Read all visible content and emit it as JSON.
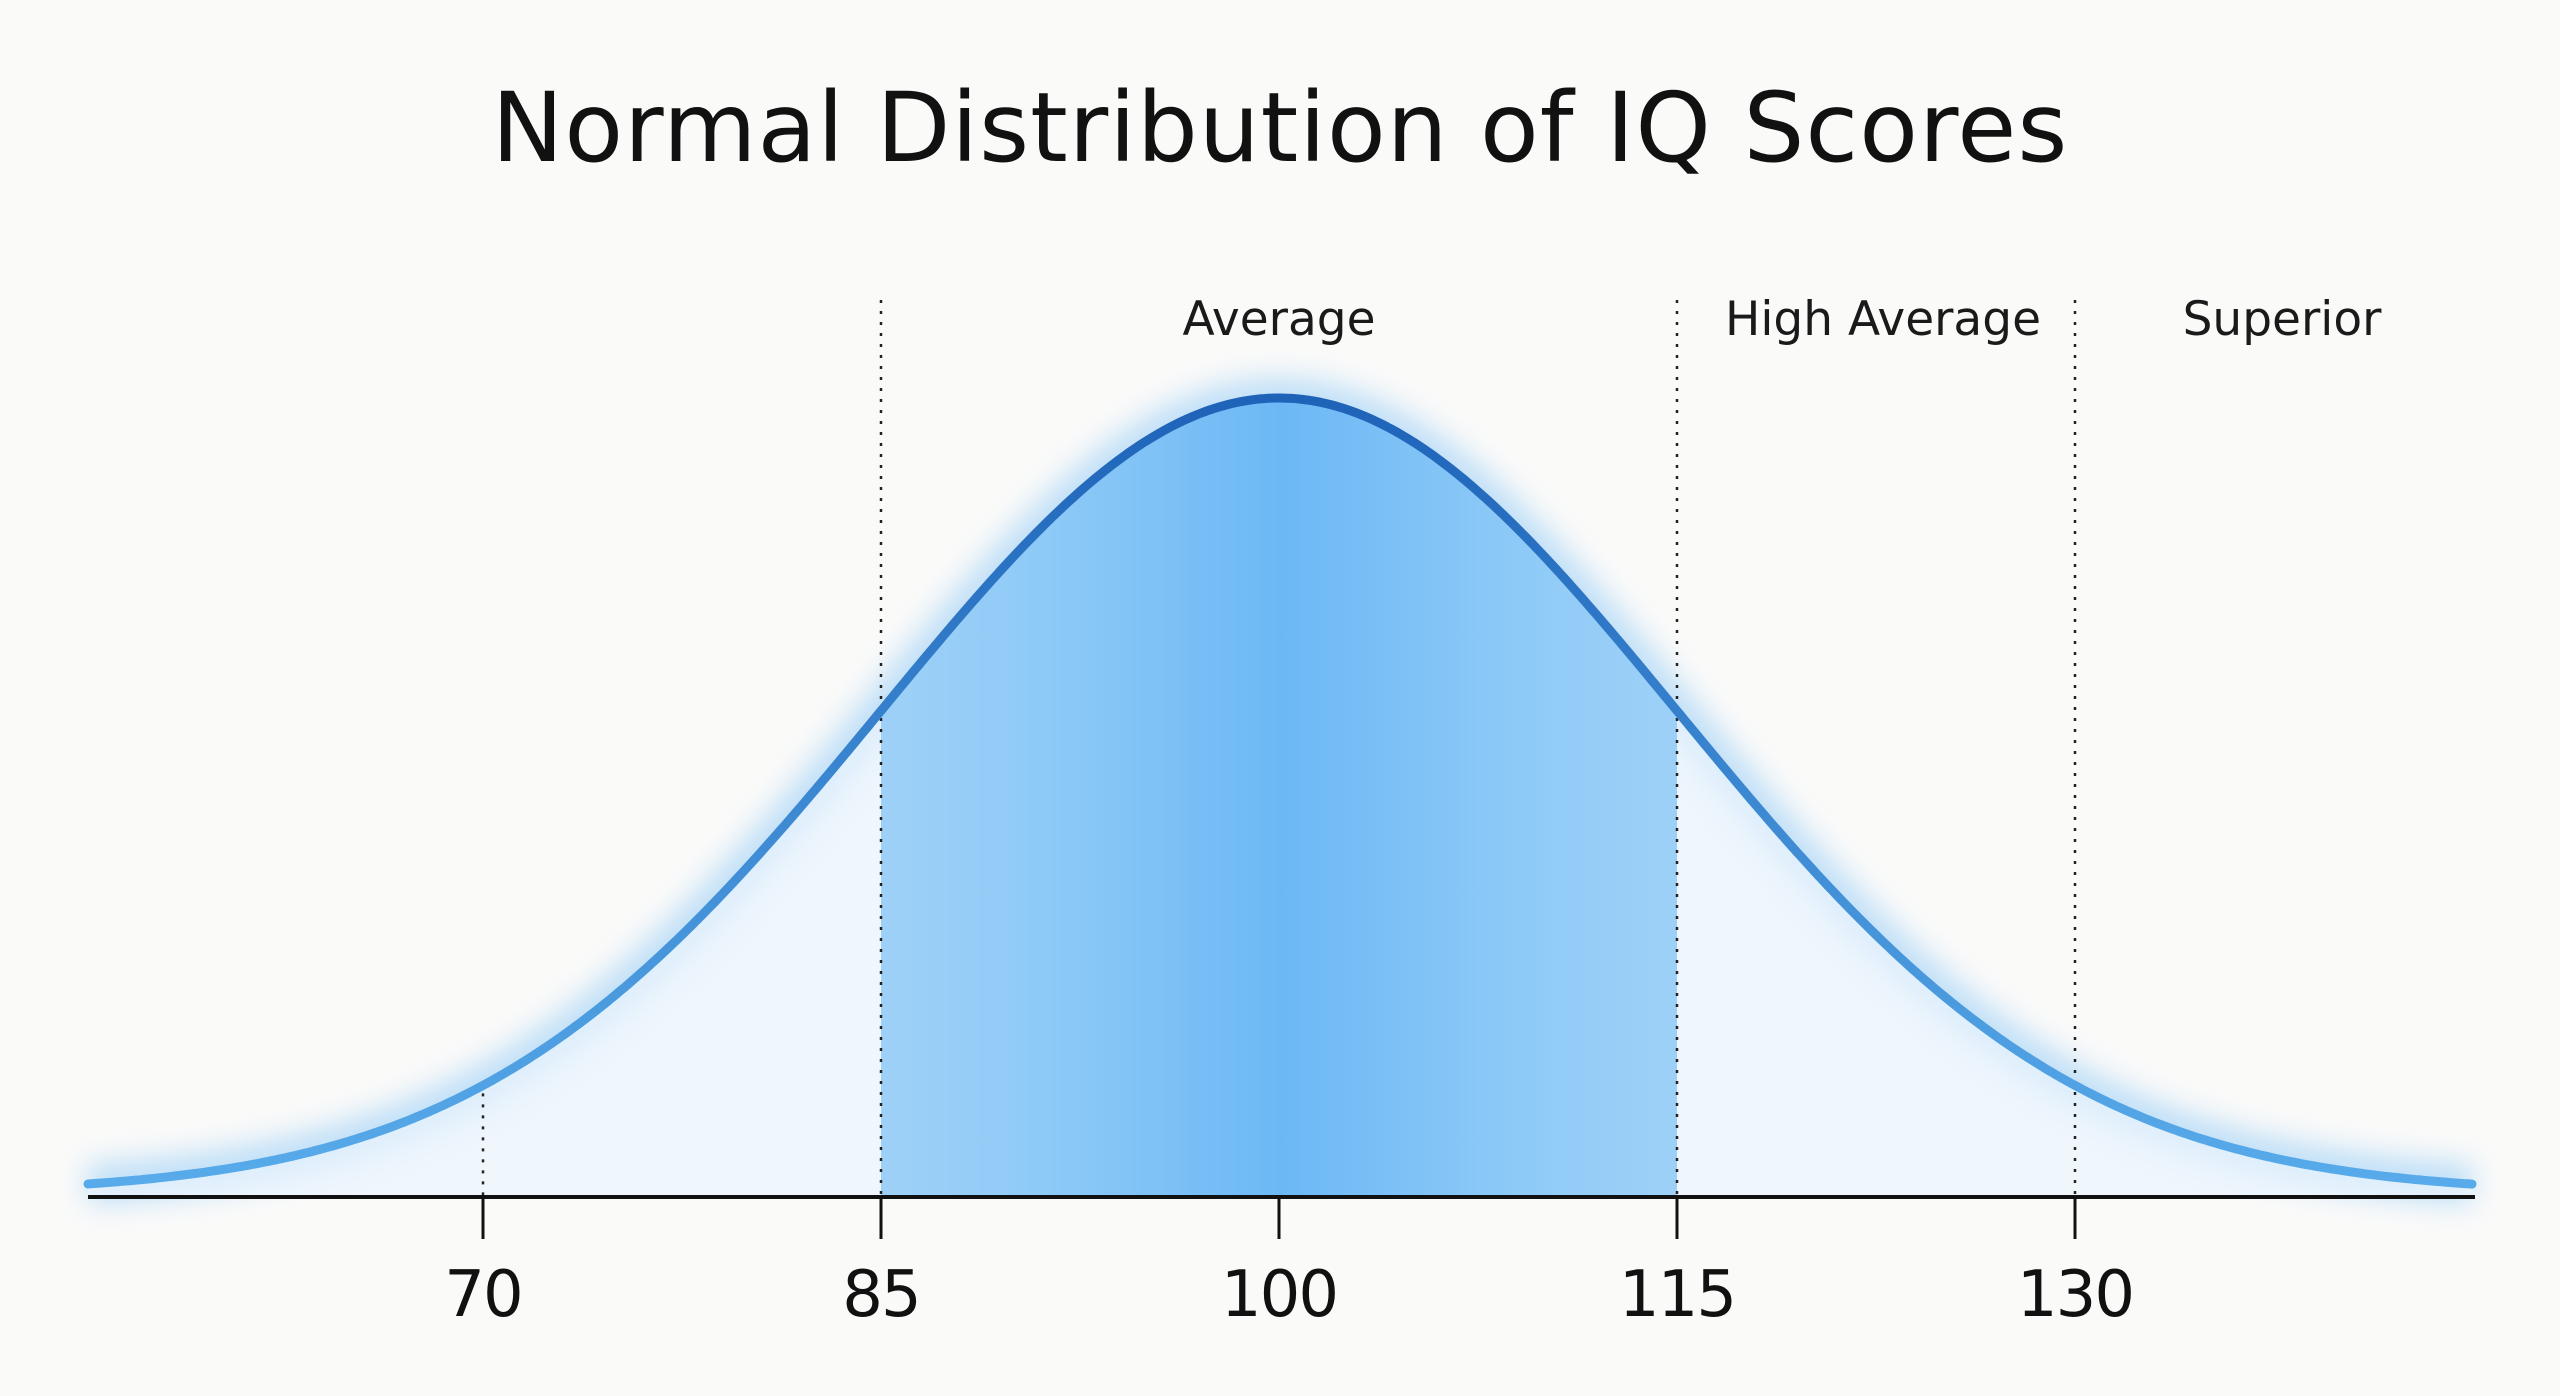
{
  "chart_data": {
    "type": "line",
    "title": "Normal Distribution of IQ Scores",
    "xlabel": "",
    "ylabel": "",
    "distribution": {
      "kind": "normal",
      "mean": 100,
      "sd": 15
    },
    "x_ticks": [
      70,
      85,
      100,
      115,
      130
    ],
    "x_tick_labels": [
      "70",
      "85",
      "100",
      "115",
      "130"
    ],
    "xlim": [
      55,
      145
    ],
    "grid": false,
    "legend": null,
    "reference_lines": [
      {
        "x": 70,
        "style": "dotted",
        "extent": "curve-to-axis"
      },
      {
        "x": 85,
        "style": "dotted",
        "extent": "full"
      },
      {
        "x": 115,
        "style": "dotted",
        "extent": "full"
      },
      {
        "x": 130,
        "style": "dotted",
        "extent": "full"
      }
    ],
    "regions": [
      {
        "label": "Average",
        "from": 85,
        "to": 115
      },
      {
        "label": "High Average",
        "from": 115,
        "to": 130
      },
      {
        "label": "Superior",
        "from": 130,
        "to": 145
      }
    ],
    "shaded_region": {
      "from": 85,
      "to": 115
    },
    "colors": {
      "curve_top": "#1e63b8",
      "curve_tail": "#4a9fe6",
      "fill_center": "#6cb8f5",
      "fill_edge": "#e3f0fc",
      "axis": "#111111",
      "background": "#fafaf9"
    }
  }
}
